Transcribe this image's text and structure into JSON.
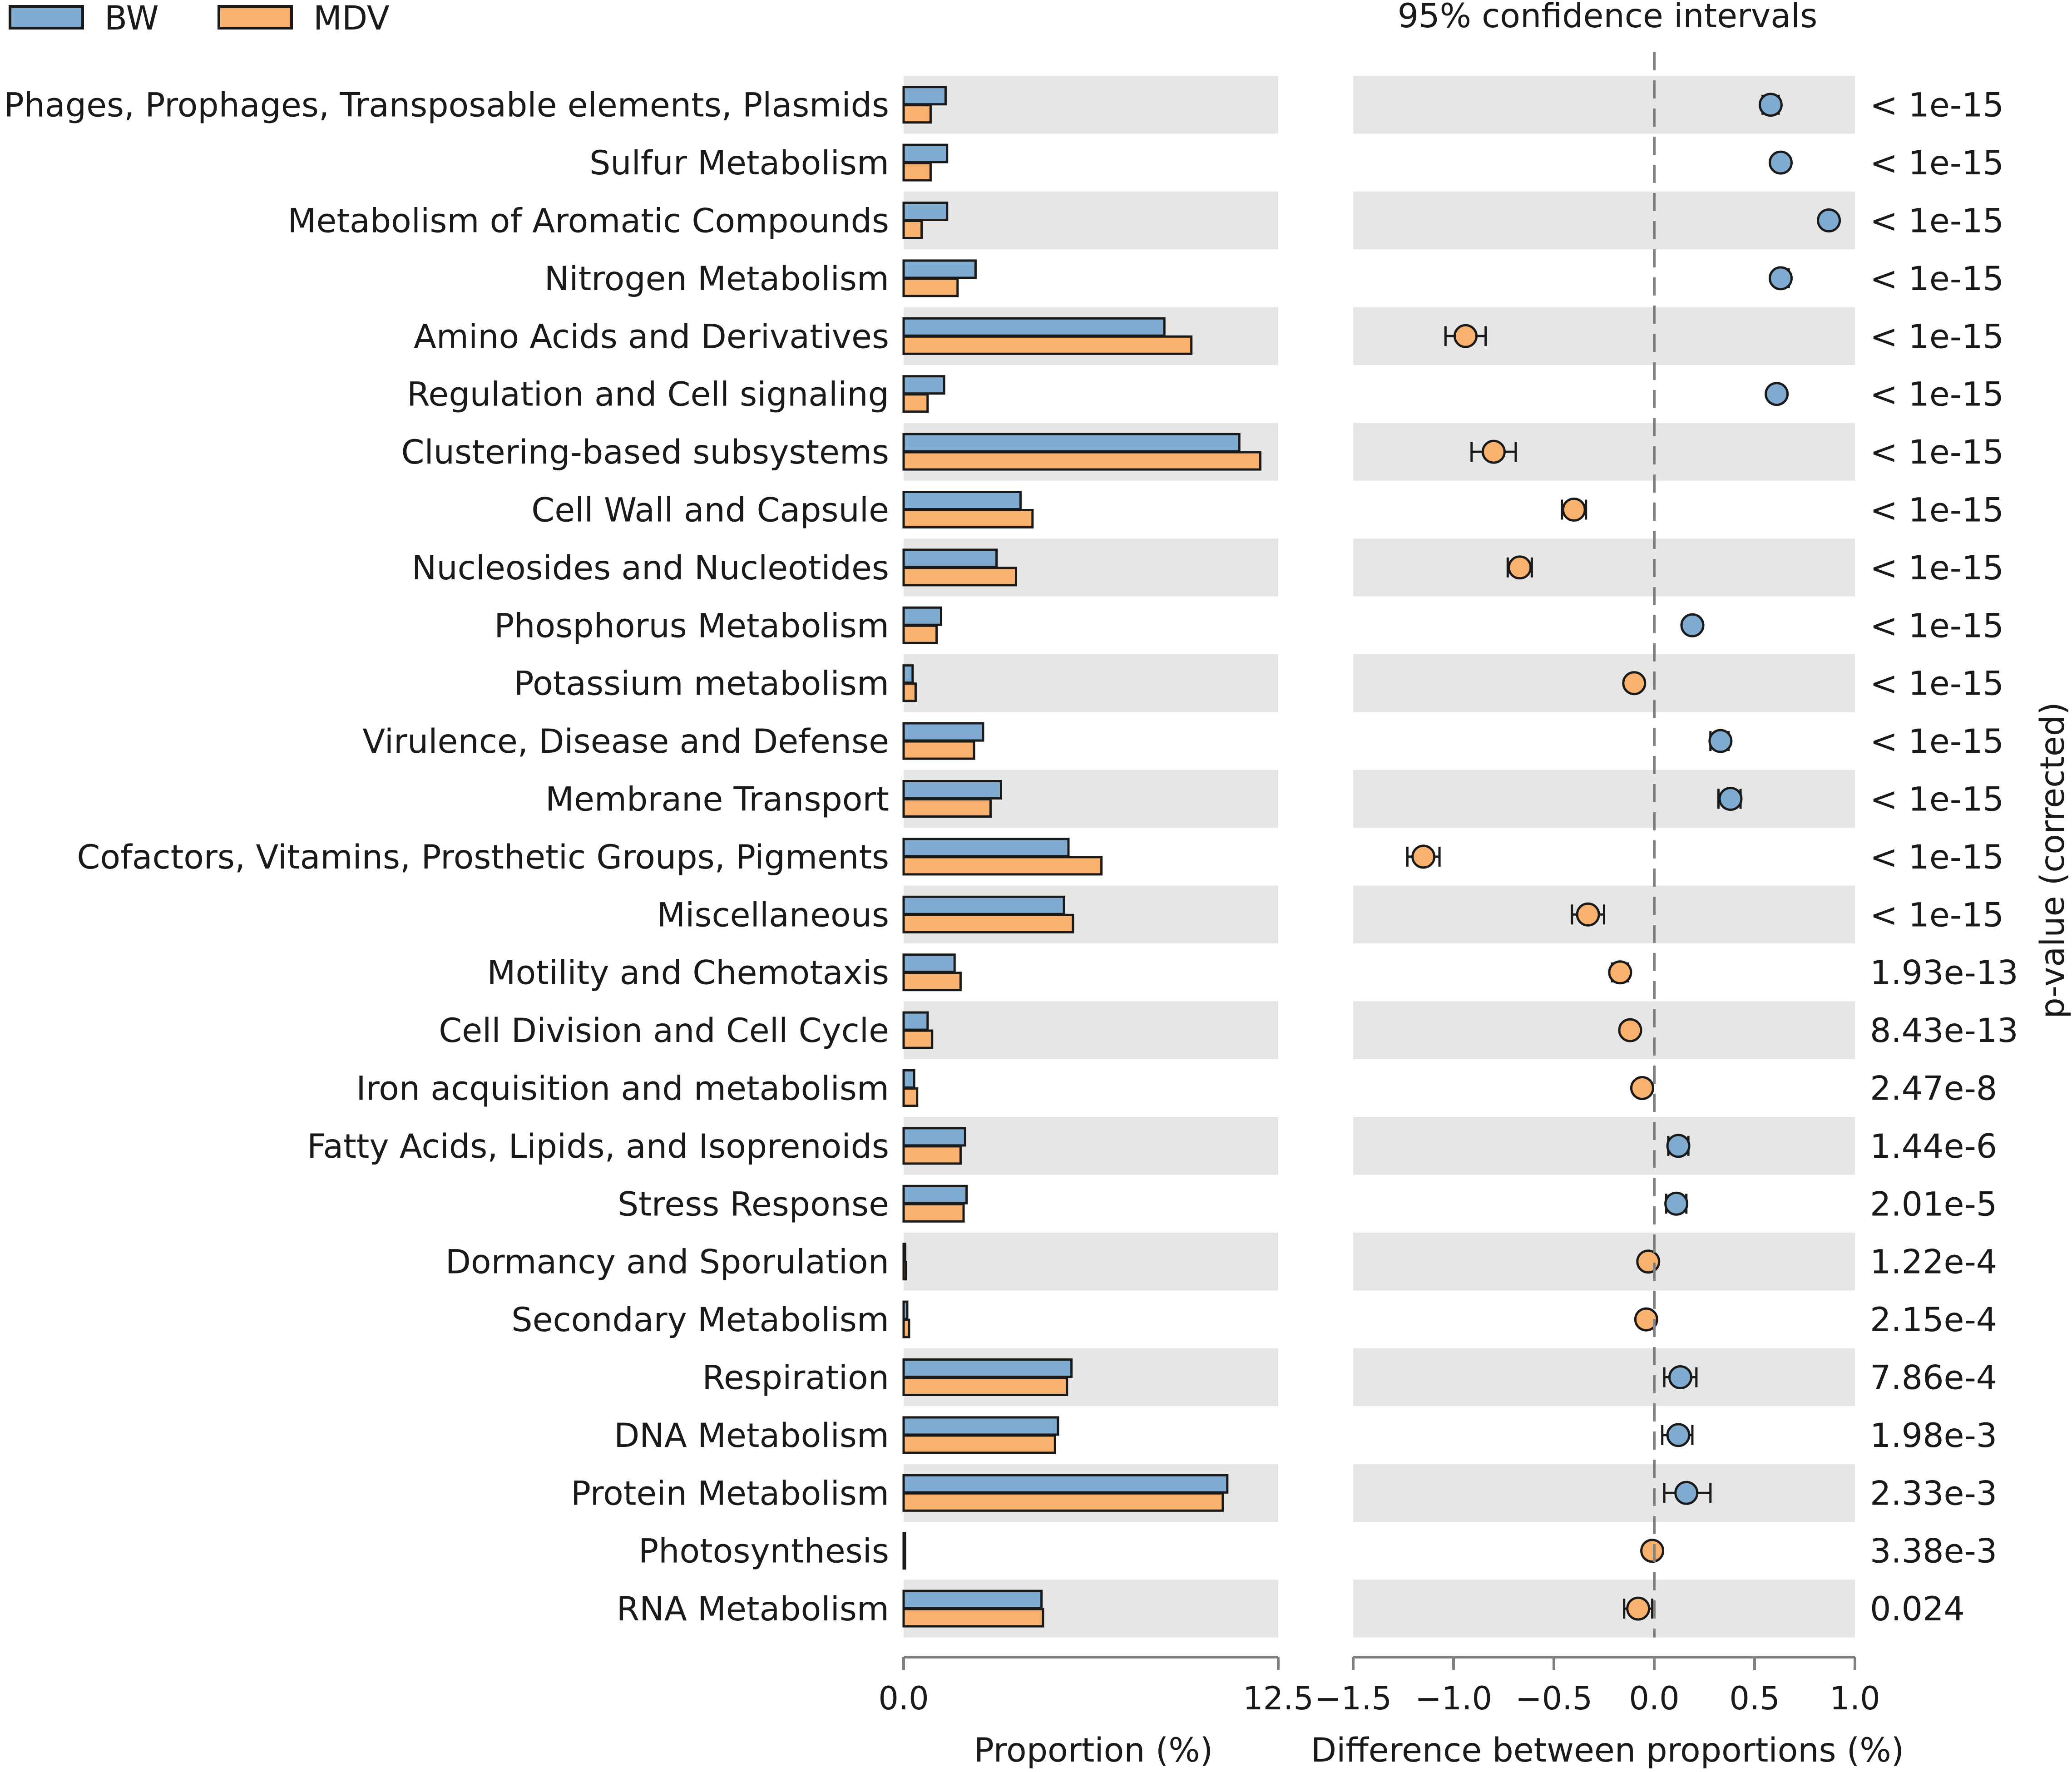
{
  "chart_data": {
    "type": "extended-error-bar",
    "legend": [
      {
        "name": "BW",
        "color": "#7fabd0"
      },
      {
        "name": "MDV",
        "color": "#f9b26e"
      }
    ],
    "ci_title": "95% confidence intervals",
    "pvalue_label": "p-value (corrected)",
    "left_panel": {
      "xlabel": "Proportion (%)",
      "xlim": [
        0.0,
        12.5
      ],
      "ticks": [
        "0.0",
        "12.5"
      ]
    },
    "right_panel": {
      "xlabel": "Difference between proportions (%)",
      "xlim": [
        -1.5,
        1.0
      ],
      "ticks": [
        "−1.5",
        "−1.0",
        "−0.5",
        "0.0",
        "0.5",
        "1.0"
      ]
    },
    "rows": [
      {
        "label": "Phages, Prophages, Transposable elements, Plasmids",
        "bw": 1.4,
        "mdv": 0.9,
        "diff": 0.58,
        "ci": [
          0.54,
          0.62
        ],
        "p": "< 1e-15"
      },
      {
        "label": "Sulfur Metabolism",
        "bw": 1.45,
        "mdv": 0.9,
        "diff": 0.63,
        "ci": [
          0.6,
          0.66
        ],
        "p": "< 1e-15"
      },
      {
        "label": "Metabolism of Aromatic Compounds",
        "bw": 1.45,
        "mdv": 0.6,
        "diff": 0.87,
        "ci": [
          0.84,
          0.9
        ],
        "p": "< 1e-15"
      },
      {
        "label": "Nitrogen Metabolism",
        "bw": 2.4,
        "mdv": 1.8,
        "diff": 0.63,
        "ci": [
          0.6,
          0.67
        ],
        "p": "< 1e-15"
      },
      {
        "label": "Amino Acids and Derivatives",
        "bw": 8.7,
        "mdv": 9.6,
        "diff": -0.94,
        "ci": [
          -1.04,
          -0.84
        ],
        "p": "< 1e-15"
      },
      {
        "label": "Regulation and Cell signaling",
        "bw": 1.35,
        "mdv": 0.8,
        "diff": 0.61,
        "ci": [
          0.58,
          0.64
        ],
        "p": "< 1e-15"
      },
      {
        "label": "Clustering-based subsystems",
        "bw": 11.2,
        "mdv": 11.9,
        "diff": -0.8,
        "ci": [
          -0.91,
          -0.69
        ],
        "p": "< 1e-15"
      },
      {
        "label": "Cell Wall and Capsule",
        "bw": 3.9,
        "mdv": 4.3,
        "diff": -0.4,
        "ci": [
          -0.46,
          -0.34
        ],
        "p": "< 1e-15"
      },
      {
        "label": "Nucleosides and Nucleotides",
        "bw": 3.1,
        "mdv": 3.75,
        "diff": -0.67,
        "ci": [
          -0.73,
          -0.61
        ],
        "p": "< 1e-15"
      },
      {
        "label": "Phosphorus Metabolism",
        "bw": 1.25,
        "mdv": 1.1,
        "diff": 0.19,
        "ci": [
          0.16,
          0.22
        ],
        "p": "< 1e-15"
      },
      {
        "label": "Potassium metabolism",
        "bw": 0.3,
        "mdv": 0.4,
        "diff": -0.1,
        "ci": [
          -0.12,
          -0.08
        ],
        "p": "< 1e-15"
      },
      {
        "label": "Virulence, Disease and Defense",
        "bw": 2.65,
        "mdv": 2.35,
        "diff": 0.33,
        "ci": [
          0.28,
          0.37
        ],
        "p": "< 1e-15"
      },
      {
        "label": "Membrane Transport",
        "bw": 3.25,
        "mdv": 2.9,
        "diff": 0.38,
        "ci": [
          0.32,
          0.43
        ],
        "p": "< 1e-15"
      },
      {
        "label": "Cofactors, Vitamins, Prosthetic Groups, Pigments",
        "bw": 5.5,
        "mdv": 6.6,
        "diff": -1.15,
        "ci": [
          -1.23,
          -1.07
        ],
        "p": "< 1e-15"
      },
      {
        "label": "Miscellaneous",
        "bw": 5.35,
        "mdv": 5.65,
        "diff": -0.33,
        "ci": [
          -0.41,
          -0.25
        ],
        "p": "< 1e-15"
      },
      {
        "label": "Motility and Chemotaxis",
        "bw": 1.7,
        "mdv": 1.9,
        "diff": -0.17,
        "ci": [
          -0.21,
          -0.13
        ],
        "p": "1.93e-13"
      },
      {
        "label": "Cell Division and Cell Cycle",
        "bw": 0.8,
        "mdv": 0.95,
        "diff": -0.12,
        "ci": [
          -0.15,
          -0.09
        ],
        "p": "8.43e-13"
      },
      {
        "label": "Iron acquisition and metabolism",
        "bw": 0.35,
        "mdv": 0.45,
        "diff": -0.06,
        "ci": [
          -0.08,
          -0.04
        ],
        "p": "2.47e-8"
      },
      {
        "label": "Fatty Acids, Lipids, and Isoprenoids",
        "bw": 2.05,
        "mdv": 1.9,
        "diff": 0.12,
        "ci": [
          0.07,
          0.17
        ],
        "p": "1.44e-6"
      },
      {
        "label": "Stress Response",
        "bw": 2.1,
        "mdv": 2.0,
        "diff": 0.11,
        "ci": [
          0.06,
          0.16
        ],
        "p": "2.01e-5"
      },
      {
        "label": "Dormancy and Sporulation",
        "bw": 0.05,
        "mdv": 0.08,
        "diff": -0.03,
        "ci": [
          -0.04,
          -0.02
        ],
        "p": "1.22e-4"
      },
      {
        "label": "Secondary Metabolism",
        "bw": 0.12,
        "mdv": 0.18,
        "diff": -0.04,
        "ci": [
          -0.05,
          -0.03
        ],
        "p": "2.15e-4"
      },
      {
        "label": "Respiration",
        "bw": 5.6,
        "mdv": 5.45,
        "diff": 0.13,
        "ci": [
          0.05,
          0.21
        ],
        "p": "7.86e-4"
      },
      {
        "label": "DNA Metabolism",
        "bw": 5.15,
        "mdv": 5.05,
        "diff": 0.12,
        "ci": [
          0.04,
          0.19
        ],
        "p": "1.98e-3"
      },
      {
        "label": "Protein Metabolism",
        "bw": 10.8,
        "mdv": 10.65,
        "diff": 0.16,
        "ci": [
          0.05,
          0.28
        ],
        "p": "2.33e-3"
      },
      {
        "label": "Photosynthesis",
        "bw": 0.02,
        "mdv": 0.03,
        "diff": -0.01,
        "ci": [
          -0.02,
          0.0
        ],
        "p": "3.38e-3"
      },
      {
        "label": "RNA Metabolism",
        "bw": 4.6,
        "mdv": 4.65,
        "diff": -0.08,
        "ci": [
          -0.15,
          -0.01
        ],
        "p": "0.024"
      }
    ]
  }
}
